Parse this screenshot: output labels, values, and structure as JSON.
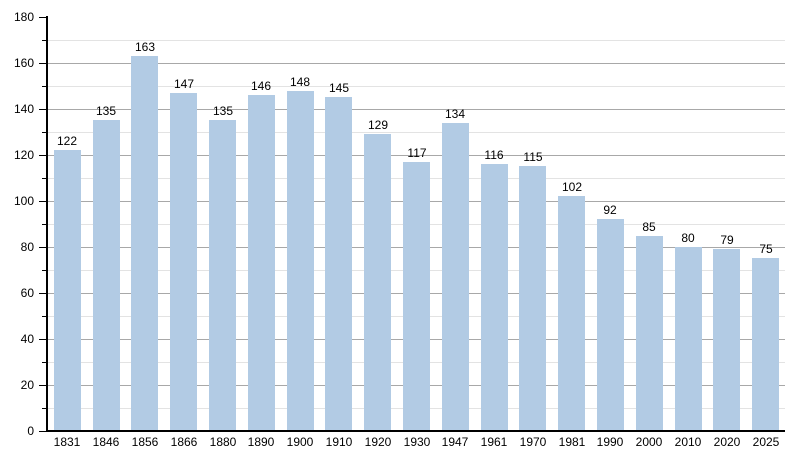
{
  "chart_data": {
    "type": "bar",
    "title": "",
    "xlabel": "",
    "ylabel": "",
    "categories": [
      "1831",
      "1846",
      "1856",
      "1866",
      "1880",
      "1890",
      "1900",
      "1910",
      "1920",
      "1930",
      "1947",
      "1961",
      "1970",
      "1981",
      "1990",
      "2000",
      "2010",
      "2020",
      "2025"
    ],
    "values": [
      122,
      135,
      163,
      147,
      135,
      146,
      148,
      145,
      129,
      117,
      134,
      116,
      115,
      102,
      92,
      85,
      80,
      79,
      75
    ],
    "ylim": [
      0,
      180
    ],
    "ytick_major_step": 20,
    "ytick_minor_step": 10,
    "grid": "horizontal",
    "legend": "none",
    "bar_color": "#b2cbe4",
    "major_grid_color": "#a8a8a8",
    "minor_grid_color": "#e3e3e3",
    "axis_color": "#000000",
    "text_color": "#000000",
    "background_color": "#ffffff"
  }
}
